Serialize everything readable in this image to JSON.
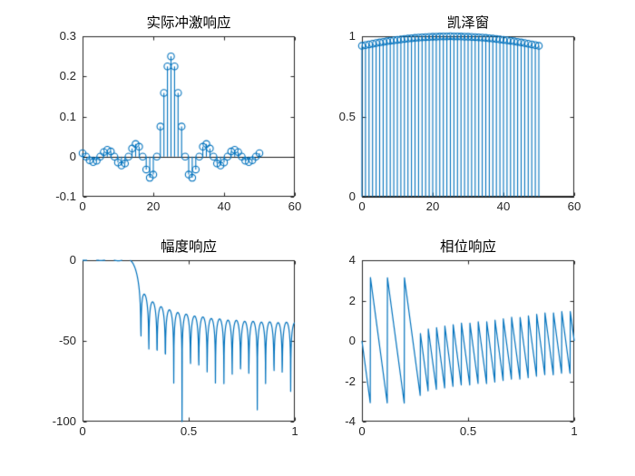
{
  "figure": {
    "bg_color": "#ffffff",
    "axis_color": "#262626",
    "tick_label_color": "#262626",
    "title_color": "#000000",
    "line_color": "#0072bd",
    "baseline_color": "#000000"
  },
  "chart_data": [
    {
      "id": "impulse_response",
      "type": "stem",
      "title": "实际冲激响应",
      "x_start": 0,
      "values": [
        0.00846,
        0,
        -0.00929,
        -0.0138,
        -0.01027,
        0,
        0.01143,
        0.01713,
        0.01287,
        0,
        -0.01468,
        -0.0223,
        -0.01702,
        0,
        0.02021,
        0.0315,
        0.0248,
        0,
        -0.03197,
        -0.05282,
        -0.04488,
        0,
        0.0749,
        0.15895,
        0.22486,
        0.25,
        0.22486,
        0.15895,
        0.0749,
        0,
        -0.04488,
        -0.05282,
        -0.03197,
        0,
        0.0248,
        0.0315,
        0.02021,
        0,
        -0.01702,
        -0.0223,
        -0.01468,
        0,
        0.01287,
        0.01713,
        0.01143,
        0,
        -0.01027,
        -0.0138,
        -0.00929,
        0,
        0.00846
      ],
      "baseline": 0,
      "xlim": [
        0,
        60
      ],
      "ylim": [
        -0.1,
        0.3
      ],
      "xticks": [
        0,
        20,
        40,
        60
      ],
      "xtick_labels": [
        "0",
        "20",
        "40",
        "60"
      ],
      "yticks": [
        -0.1,
        0,
        0.1,
        0.2,
        0.3
      ],
      "ytick_labels": [
        "-0.1",
        "0",
        "0.1",
        "0.2",
        "0.3"
      ],
      "grid": false
    },
    {
      "id": "kaiser_window",
      "type": "stem",
      "title": "凯泽窗",
      "x_start": 0,
      "values": [
        0.9403,
        0.9449,
        0.9493,
        0.9536,
        0.9576,
        0.9615,
        0.9651,
        0.9686,
        0.9719,
        0.975,
        0.9779,
        0.9807,
        0.9832,
        0.9856,
        0.9877,
        0.9897,
        0.9915,
        0.9931,
        0.9945,
        0.9957,
        0.9968,
        0.9976,
        0.9983,
        0.9988,
        0.999,
        1.0,
        0.999,
        0.9988,
        0.9983,
        0.9976,
        0.9968,
        0.9957,
        0.9945,
        0.9931,
        0.9915,
        0.9897,
        0.9877,
        0.9856,
        0.9832,
        0.9807,
        0.9779,
        0.975,
        0.9719,
        0.9686,
        0.9651,
        0.9615,
        0.9576,
        0.9536,
        0.9493,
        0.9449,
        0.9403
      ],
      "baseline": 0,
      "xlim": [
        0,
        60
      ],
      "ylim": [
        0,
        1
      ],
      "xticks": [
        0,
        20,
        40,
        60
      ],
      "xtick_labels": [
        "0",
        "20",
        "40",
        "60"
      ],
      "yticks": [
        0,
        0.5,
        1
      ],
      "ytick_labels": [
        "0",
        "0.5",
        "1"
      ],
      "grid": false
    },
    {
      "id": "magnitude_response",
      "type": "line",
      "title": "幅度响应",
      "derived": {
        "source": "impulse_response",
        "transform": "magnitude_db",
        "n_points": 1024
      },
      "xlim": [
        0,
        1
      ],
      "ylim": [
        -100,
        0
      ],
      "xticks": [
        0,
        0.5,
        1
      ],
      "xtick_labels": [
        "0",
        "0.5",
        "1"
      ],
      "yticks": [
        -100,
        -50,
        0
      ],
      "ytick_labels": [
        "-100",
        "-50",
        "0"
      ],
      "grid": false
    },
    {
      "id": "phase_response",
      "type": "line",
      "title": "相位响应",
      "derived": {
        "source": "impulse_response",
        "transform": "phase_rad",
        "n_points": 1024
      },
      "xlim": [
        0,
        1
      ],
      "ylim": [
        -4,
        4
      ],
      "xticks": [
        0,
        0.5,
        1
      ],
      "xtick_labels": [
        "0",
        "0.5",
        "1"
      ],
      "yticks": [
        -4,
        -2,
        0,
        2,
        4
      ],
      "ytick_labels": [
        "-4",
        "-2",
        "0",
        "2",
        "4"
      ],
      "grid": false
    }
  ]
}
